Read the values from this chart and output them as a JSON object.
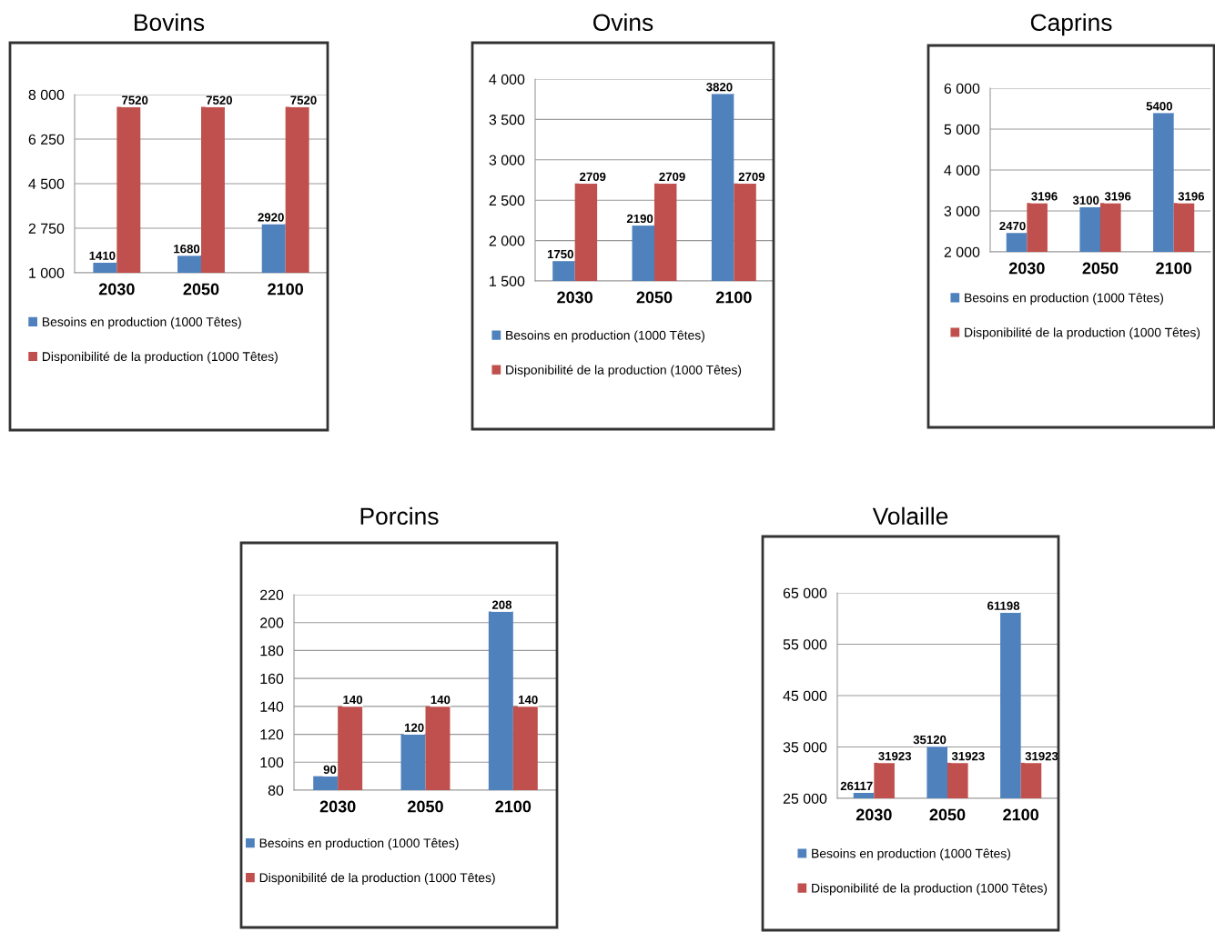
{
  "chart_data": [
    {
      "type": "bar",
      "title": "Bovins",
      "categories": [
        "2030",
        "2050",
        "2100"
      ],
      "series": [
        {
          "name": "Besoins en production (1000 Têtes)",
          "color": "#4f81bd",
          "values": [
            1410,
            1680,
            2920
          ]
        },
        {
          "name": "Disponibilité de la production (1000 Têtes)",
          "color": "#c0504d",
          "values": [
            7520,
            7520,
            7520
          ]
        }
      ],
      "ylim": [
        1000,
        8000
      ],
      "yticks": [
        {
          "value": 1000,
          "label": "1 000"
        },
        {
          "value": 2750,
          "label": "2 750"
        },
        {
          "value": 4500,
          "label": "4 500"
        },
        {
          "value": 6250,
          "label": "6 250"
        },
        {
          "value": 8000,
          "label": "8 000"
        }
      ],
      "grid": "y",
      "legend": "bottom",
      "data_labels": true
    },
    {
      "type": "bar",
      "title": "Ovins",
      "categories": [
        "2030",
        "2050",
        "2100"
      ],
      "series": [
        {
          "name": "Besoins en production (1000 Têtes)",
          "color": "#4f81bd",
          "values": [
            1750,
            2190,
            3820
          ]
        },
        {
          "name": "Disponibilité de la production (1000 Têtes)",
          "color": "#c0504d",
          "values": [
            2709,
            2709,
            2709
          ]
        }
      ],
      "ylim": [
        1500,
        4000
      ],
      "yticks": [
        {
          "value": 1500,
          "label": "1 500"
        },
        {
          "value": 2000,
          "label": "2 000"
        },
        {
          "value": 2500,
          "label": "2 500"
        },
        {
          "value": 3000,
          "label": "3 000"
        },
        {
          "value": 3500,
          "label": "3 500"
        },
        {
          "value": 4000,
          "label": "4 000"
        }
      ],
      "grid": "y",
      "legend": "bottom",
      "data_labels": true
    },
    {
      "type": "bar",
      "title": "Caprins",
      "categories": [
        "2030",
        "2050",
        "2100"
      ],
      "series": [
        {
          "name": "Besoins en production (1000 Têtes)",
          "color": "#4f81bd",
          "values": [
            2470,
            3100,
            5400
          ]
        },
        {
          "name": "Disponibilité de la production (1000 Têtes)",
          "color": "#c0504d",
          "values": [
            3196,
            3196,
            3196
          ]
        }
      ],
      "ylim": [
        2000,
        6000
      ],
      "yticks": [
        {
          "value": 2000,
          "label": "2 000"
        },
        {
          "value": 3000,
          "label": "3 000"
        },
        {
          "value": 4000,
          "label": "4 000"
        },
        {
          "value": 5000,
          "label": "5 000"
        },
        {
          "value": 6000,
          "label": "6 000"
        }
      ],
      "grid": "y",
      "legend": "bottom",
      "data_labels": true
    },
    {
      "type": "bar",
      "title": "Porcins",
      "categories": [
        "2030",
        "2050",
        "2100"
      ],
      "series": [
        {
          "name": "Besoins en production (1000 Têtes)",
          "color": "#4f81bd",
          "values": [
            90,
            120,
            208
          ]
        },
        {
          "name": "Disponibilité de la production (1000 Têtes)",
          "color": "#c0504d",
          "values": [
            140,
            140,
            140
          ]
        }
      ],
      "ylim": [
        80,
        220
      ],
      "yticks": [
        80,
        100,
        120,
        140,
        160,
        180,
        200,
        220
      ],
      "grid": "y",
      "legend": "bottom",
      "data_labels": true
    },
    {
      "type": "bar",
      "title": "Volaille",
      "categories": [
        "2030",
        "2050",
        "2100"
      ],
      "series": [
        {
          "name": "Besoins en production (1000 Têtes)",
          "color": "#4f81bd",
          "values": [
            26117,
            35120,
            61198
          ]
        },
        {
          "name": "Disponibilité de la production (1000 Têtes)",
          "color": "#c0504d",
          "values": [
            31923,
            31923,
            31923
          ]
        }
      ],
      "ylim": [
        25000,
        65000
      ],
      "yticks": [
        {
          "value": 25000,
          "label": "25 000"
        },
        {
          "value": 35000,
          "label": "35 000"
        },
        {
          "value": 45000,
          "label": "45 000"
        },
        {
          "value": 55000,
          "label": "55 000"
        },
        {
          "value": 65000,
          "label": "65 000"
        }
      ],
      "grid": "y",
      "legend": "bottom",
      "data_labels": true
    }
  ]
}
